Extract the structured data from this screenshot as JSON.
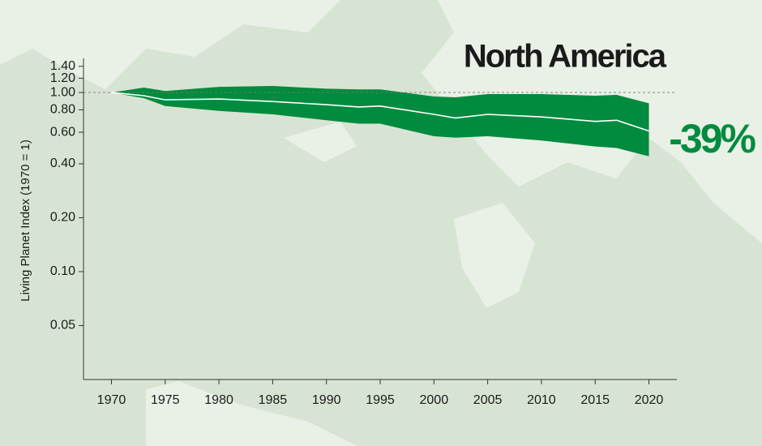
{
  "chart_data": {
    "type": "band_line",
    "title": "North America",
    "annotation": "-39%",
    "y_label": "Living Planet Index (1970 = 1)",
    "x": [
      1970,
      1973,
      1975,
      1980,
      1985,
      1990,
      1993,
      1995,
      2000,
      2002,
      2005,
      2010,
      2015,
      2017,
      2020
    ],
    "values": [
      1.0,
      0.96,
      0.91,
      0.92,
      0.89,
      0.855,
      0.83,
      0.84,
      0.755,
      0.72,
      0.755,
      0.73,
      0.69,
      0.7,
      0.61
    ],
    "upper": [
      1.0,
      1.065,
      1.02,
      1.075,
      1.087,
      1.05,
      1.04,
      1.04,
      0.95,
      0.94,
      0.98,
      0.98,
      0.96,
      0.97,
      0.87
    ],
    "lower": [
      1.0,
      0.93,
      0.84,
      0.79,
      0.755,
      0.7,
      0.67,
      0.67,
      0.57,
      0.56,
      0.57,
      0.54,
      0.5,
      0.49,
      0.44
    ],
    "color": "#008b3e",
    "line_color": "#ffffff",
    "reference_line": 1,
    "log_y": true,
    "xlim": [
      1967.4,
      2022.6
    ],
    "ylim": [
      0.025,
      1.55
    ],
    "xticks": [
      1970,
      1975,
      1980,
      1985,
      1990,
      1995,
      2000,
      2005,
      2010,
      2015,
      2020
    ],
    "yticks": [
      0.05,
      {
        "value": 0.1,
        "label": "0.10"
      },
      {
        "value": 0.2,
        "label": "0.20"
      },
      {
        "value": 0.4,
        "label": "0.40"
      },
      {
        "value": 0.6,
        "label": "0.60"
      },
      {
        "value": 0.8,
        "label": "0.80"
      },
      {
        "value": 1,
        "label": "1.00"
      },
      {
        "value": 1.2,
        "label": "1.20"
      },
      {
        "value": 1.4,
        "label": "1.40"
      }
    ]
  }
}
